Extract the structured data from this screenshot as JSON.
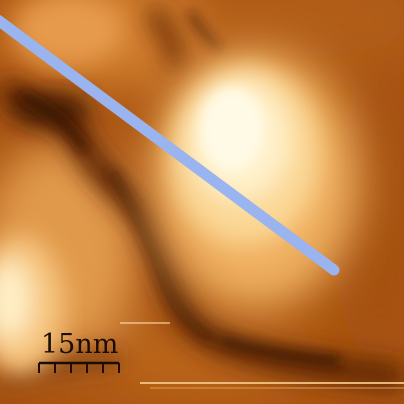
{
  "scale_bar": {
    "label": "15nm",
    "tick_count": 6
  },
  "profile_line": {
    "color": "#99b4ee"
  },
  "colormap": {
    "dark": "#3a1400",
    "mid": "#c8671a",
    "bright": "#fffbe8"
  }
}
